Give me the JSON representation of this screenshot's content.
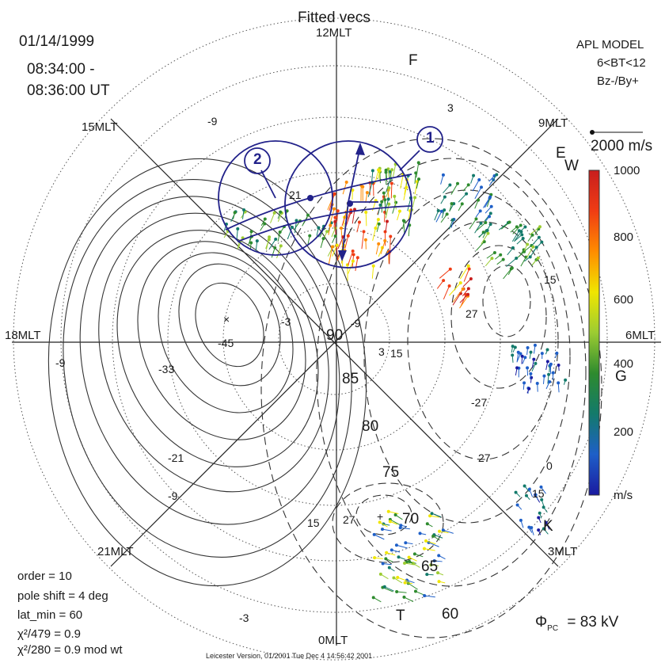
{
  "title": "Fitted vecs",
  "date": "01/14/1999",
  "time_start": "08:34:00 -",
  "time_end": "08:36:00 UT",
  "model": {
    "line1": "APL MODEL",
    "line2": "6<BT<12",
    "line3": "Bz-/By+"
  },
  "scale_vector": "2000 m/s",
  "mlt_labels": {
    "noon": "12MLT",
    "dusk": "18MLT",
    "dawn": "6MLT",
    "midnight": "0MLT",
    "t15": "15MLT",
    "t9": "9MLT",
    "t21": "21MLT",
    "t3": "3MLT"
  },
  "latitude_labels": [
    "90",
    "85",
    "80",
    "75",
    "70",
    "65",
    "60"
  ],
  "contour_labels": [
    "3",
    "-9",
    "21",
    "-45",
    "-9",
    "-33",
    "-21",
    "-9",
    "-3",
    "-9",
    "3",
    "15",
    "27",
    "15",
    "-27",
    "27",
    "0",
    "15",
    "15",
    "27",
    "-3"
  ],
  "radar_letters": [
    "F",
    "E",
    "W",
    "G",
    "K",
    "T"
  ],
  "circle_markers": [
    "1",
    "2"
  ],
  "colorbar": {
    "ticks": [
      "1000",
      "800",
      "600",
      "400",
      "200"
    ],
    "unit": "m/s",
    "colors": [
      "#c81e1e",
      "#f03c14",
      "#ff8c00",
      "#f0e600",
      "#9ccc32",
      "#2e8b2e",
      "#137a6b",
      "#1e5fc8",
      "#1a1aa0"
    ]
  },
  "fit_info": {
    "order": "order = 10",
    "pole_shift": "pole shift = 4 deg",
    "lat_min": "lat_min = 60",
    "chi1": "χ²/479 = 0.9",
    "chi2": "χ²/280 = 0.9   mod wt"
  },
  "potential": "Φ",
  "potential_sub": "PC",
  "potential_value": "= 83 kV",
  "footer": "Leicester Version, 01/2001   Tue Dec  4 14:56:42 2001"
}
